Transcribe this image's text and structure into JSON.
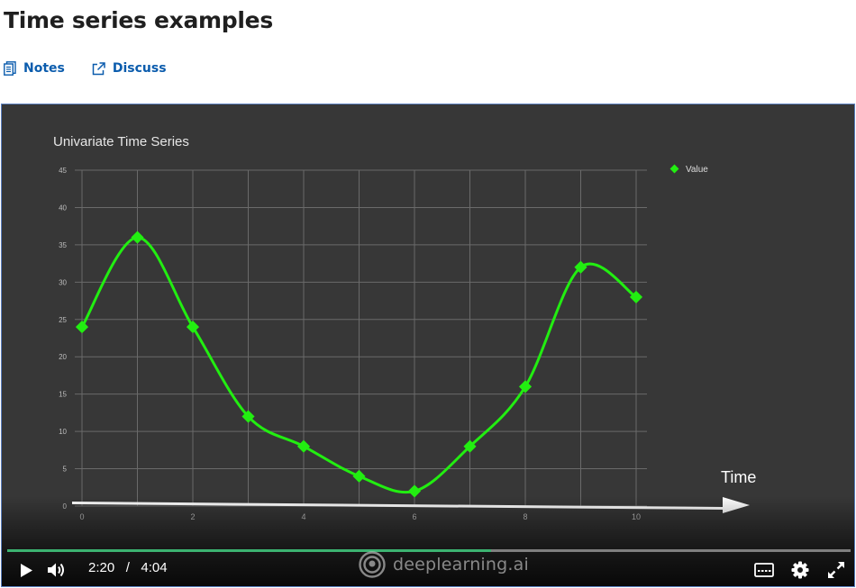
{
  "page": {
    "title": "Time series examples",
    "links": [
      {
        "label": "Notes",
        "icon": "notes-icon"
      },
      {
        "label": "Discuss",
        "icon": "external-link-icon"
      }
    ]
  },
  "player": {
    "current_time": "2:20",
    "separator": "/",
    "duration": "4:04",
    "progress_fraction": 0.574,
    "brand": "deeplearning.ai",
    "colors": {
      "progress": "#3cb371",
      "background": "#373737"
    }
  },
  "chart_data": {
    "type": "line",
    "title": "Univariate Time Series",
    "xlabel": "",
    "ylabel": "",
    "x": [
      0,
      1,
      2,
      3,
      4,
      5,
      6,
      7,
      8,
      9,
      10
    ],
    "series": [
      {
        "name": "Value",
        "values": [
          24,
          36,
          24,
          12,
          8,
          4,
          2,
          8,
          16,
          32,
          28
        ]
      }
    ],
    "xticks": [
      0,
      2,
      4,
      6,
      8,
      10
    ],
    "yticks": [
      0,
      5,
      10,
      15,
      20,
      25,
      30,
      35,
      40,
      45
    ],
    "xlim": [
      0,
      10
    ],
    "ylim": [
      0,
      45
    ],
    "grid": true,
    "legend": "top-right",
    "line_color": "#22ee11",
    "annotation": "Time"
  }
}
